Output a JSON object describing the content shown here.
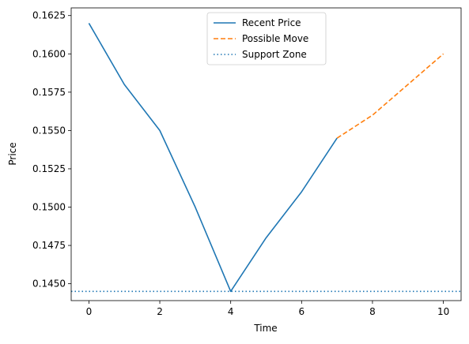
{
  "chart_data": {
    "type": "line",
    "title": "",
    "xlabel": "Time",
    "ylabel": "Price",
    "xlim": [
      -0.5,
      10.5
    ],
    "ylim": [
      0.1439,
      0.163
    ],
    "x_ticks": [
      0,
      2,
      4,
      6,
      8,
      10
    ],
    "x_tick_labels": [
      "0",
      "2",
      "4",
      "6",
      "8",
      "10"
    ],
    "y_ticks": [
      0.145,
      0.1475,
      0.15,
      0.1525,
      0.155,
      0.1575,
      0.16,
      0.1625
    ],
    "y_tick_labels": [
      "0.1450",
      "0.1475",
      "0.1500",
      "0.1525",
      "0.1550",
      "0.1575",
      "0.1600",
      "0.1625"
    ],
    "grid": false,
    "legend_position": "top-center",
    "series": [
      {
        "name": "Recent Price",
        "style": "solid",
        "color": "#1f77b4",
        "x": [
          0,
          1,
          2,
          3,
          4,
          5,
          6,
          7
        ],
        "y": [
          0.162,
          0.158,
          0.155,
          0.15,
          0.1445,
          0.148,
          0.151,
          0.1545
        ]
      },
      {
        "name": "Possible Move",
        "style": "dashed",
        "color": "#ff7f0e",
        "x": [
          7,
          8,
          9,
          10
        ],
        "y": [
          0.1545,
          0.156,
          0.158,
          0.16
        ]
      },
      {
        "name": "Support Zone",
        "style": "dotted",
        "color": "#1f77b4",
        "type": "hline",
        "y": 0.1445
      }
    ]
  }
}
